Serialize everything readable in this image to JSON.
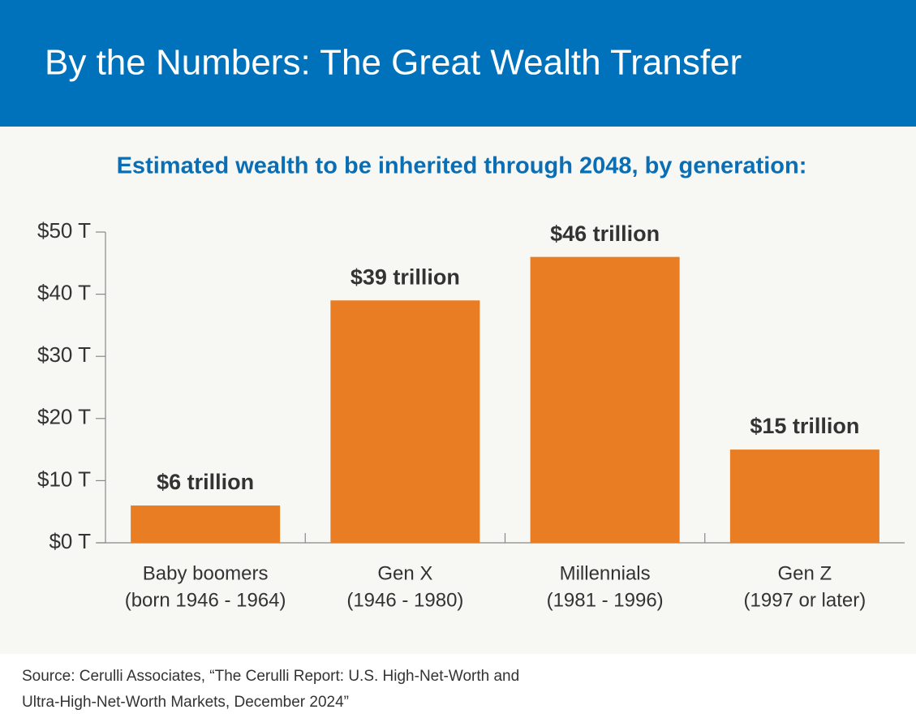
{
  "chart_data": {
    "type": "bar",
    "title": "By the Numbers: The Great Wealth Transfer",
    "subtitle": "Estimated wealth to be inherited through 2048, by generation:",
    "categories": [
      [
        "Baby boomers",
        "(born 1946 - 1964)"
      ],
      [
        "Gen X",
        "(1946 - 1980)"
      ],
      [
        "Millennials",
        "(1981 - 1996)"
      ],
      [
        "Gen Z",
        "(1997 or later)"
      ]
    ],
    "values": [
      6,
      39,
      46,
      15
    ],
    "value_labels": [
      "$6 trillion",
      "$39 trillion",
      "$46 trillion",
      "$15 trillion"
    ],
    "color": "#e87d24",
    "ylim": [
      0,
      50
    ],
    "yticks": [
      {
        "value": 0,
        "label": "$0 T"
      },
      {
        "value": 10,
        "label": "$10 T"
      },
      {
        "value": 20,
        "label": "$20 T"
      },
      {
        "value": 30,
        "label": "$30 T"
      },
      {
        "value": 40,
        "label": "$40 T"
      },
      {
        "value": 50,
        "label": "$50 T"
      }
    ],
    "grid": false,
    "source": [
      "Source: Cerulli Associates, “The Cerulli Report: U.S. High-Net-Worth and",
      "Ultra-High-Net-Worth Markets, December 2024”"
    ]
  }
}
